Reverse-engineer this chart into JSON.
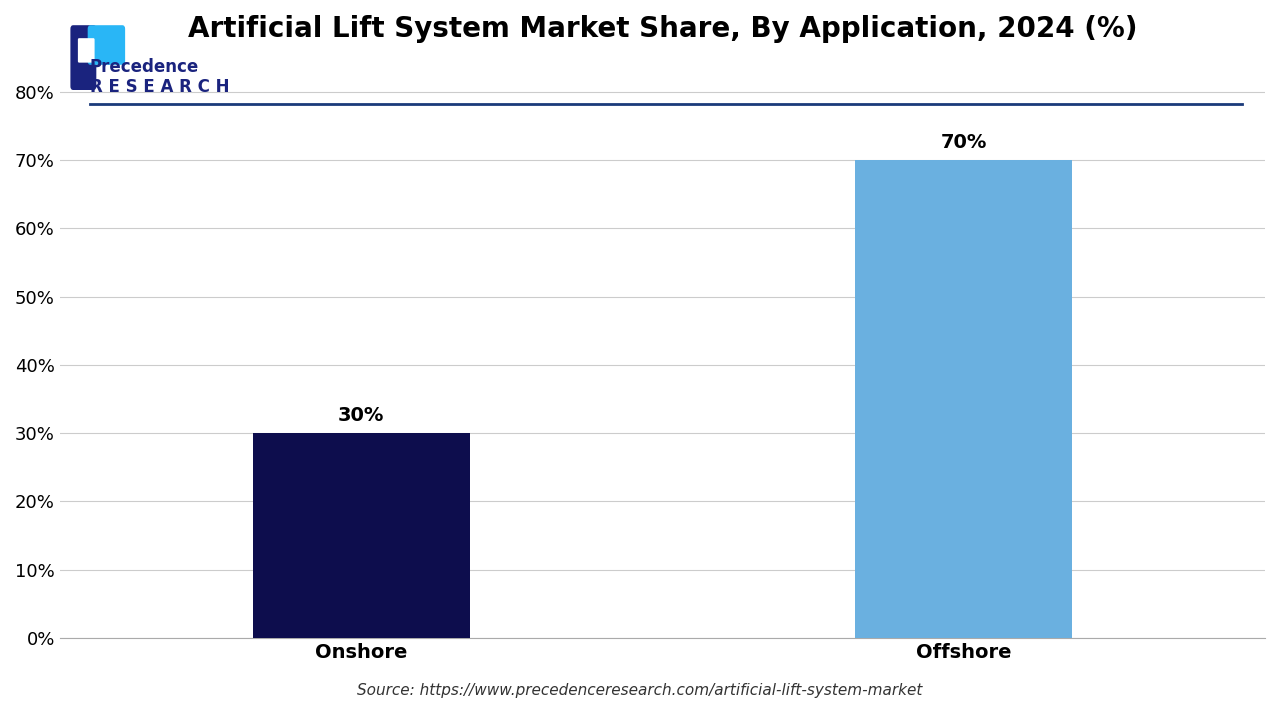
{
  "title": "Artificial Lift System Market Share, By Application, 2024 (%)",
  "categories": [
    "Onshore",
    "Offshore"
  ],
  "values": [
    30,
    70
  ],
  "bar_colors": [
    "#0d0d4d",
    "#6ab0e0"
  ],
  "bar_labels": [
    "30%",
    "70%"
  ],
  "yticks": [
    0,
    10,
    20,
    30,
    40,
    50,
    60,
    70,
    80
  ],
  "ytick_labels": [
    "0%",
    "10%",
    "20%",
    "30%",
    "40%",
    "50%",
    "60%",
    "70%",
    "80%"
  ],
  "ylim": [
    0,
    85
  ],
  "background_color": "#ffffff",
  "source_text": "Source: https://www.precedenceresearch.com/artificial-lift-system-market",
  "title_fontsize": 20,
  "tick_fontsize": 13,
  "label_fontsize": 14,
  "bar_label_fontsize": 14,
  "source_fontsize": 11
}
